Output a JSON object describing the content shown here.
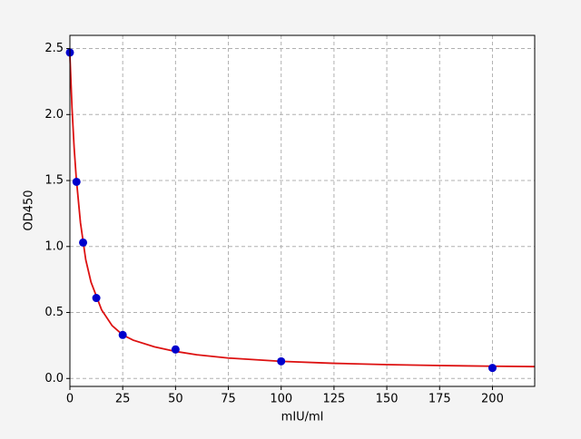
{
  "chart_data": {
    "type": "scatter",
    "xlabel": "mIU/ml",
    "ylabel": "OD450",
    "xlim": [
      0,
      220
    ],
    "ylim": [
      -0.06,
      2.6
    ],
    "xticks": [
      0,
      25,
      50,
      75,
      100,
      125,
      150,
      175,
      200
    ],
    "yticks": [
      {
        "value": 0,
        "label": "0.0"
      },
      0.5,
      {
        "value": 1,
        "label": "1.0"
      },
      1.5,
      {
        "value": 2,
        "label": "2.0"
      },
      2.5
    ],
    "grid": true,
    "series": [
      {
        "type": "line",
        "color": "#dd1111",
        "x": [
          0,
          1,
          2,
          3,
          5,
          7.5,
          10,
          15,
          20,
          25,
          30,
          40,
          50,
          60,
          75,
          100,
          125,
          150,
          175,
          200,
          220
        ],
        "values": [
          2.45,
          2.05,
          1.75,
          1.52,
          1.18,
          0.9,
          0.73,
          0.52,
          0.4,
          0.33,
          0.29,
          0.24,
          0.205,
          0.18,
          0.155,
          0.13,
          0.115,
          0.105,
          0.098,
          0.093,
          0.09
        ]
      },
      {
        "type": "scatter",
        "color": "#0000cc",
        "x": [
          0,
          3.125,
          6.25,
          12.5,
          25,
          50,
          100,
          200
        ],
        "values": [
          2.47,
          1.49,
          1.03,
          0.61,
          0.33,
          0.22,
          0.13,
          0.08
        ]
      }
    ]
  }
}
